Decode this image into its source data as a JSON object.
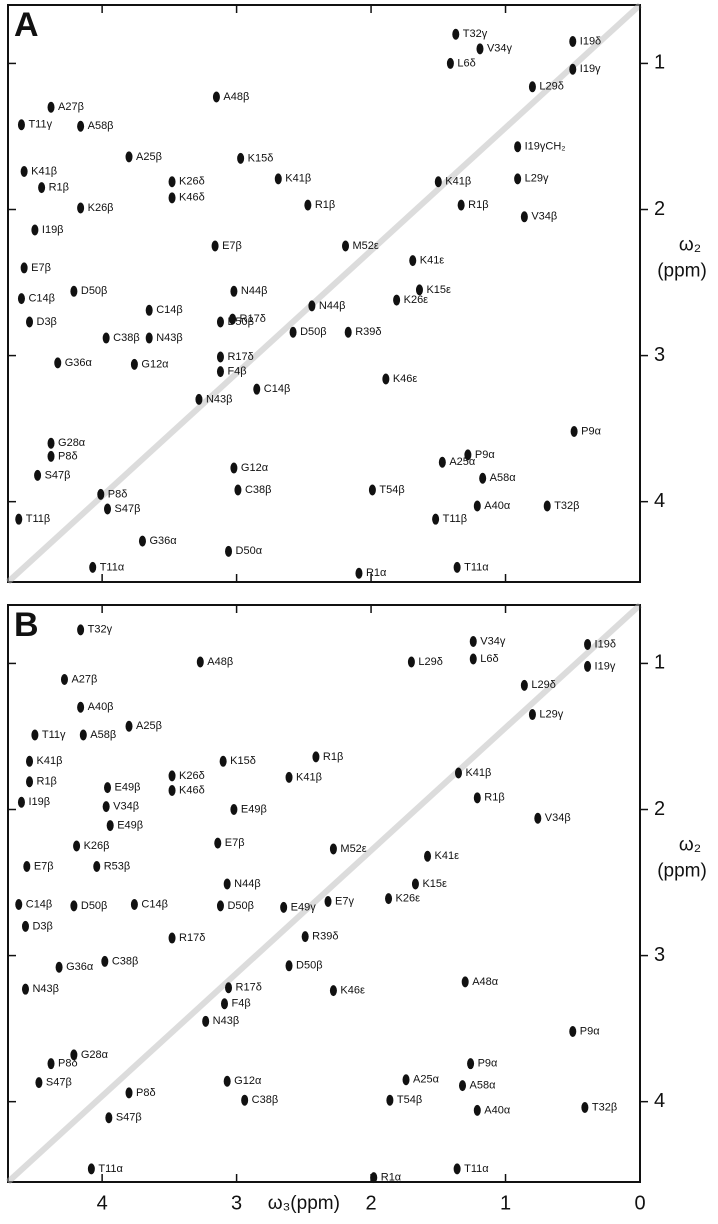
{
  "chart_data": [
    {
      "type": "scatter",
      "title": "A",
      "ylabel": "ω₂",
      "yunit": "(ppm)",
      "color": "#111111",
      "xlim": [
        4.7,
        0
      ],
      "ylim": [
        0.6,
        4.55
      ],
      "xticks": [
        4,
        3,
        2,
        1,
        0
      ],
      "yticks": [
        1,
        2,
        3,
        4
      ],
      "labels": [
        "T32γ",
        "I19δ",
        "V34γ",
        "L6δ",
        "I19γ",
        "L29δ",
        "A48β",
        "A27β",
        "T11γ",
        "A58β",
        "I19γCH₂",
        "A25β",
        "K15δ",
        "K26δ",
        "K41β",
        "K41β",
        "K46δ",
        "L29γ",
        "R1β",
        "K41β",
        "R1β",
        "R1β",
        "K26β",
        "V34β",
        "I19β",
        "E7β",
        "M52ε",
        "K41ε",
        "E7β",
        "N44β",
        "C14β",
        "D50β",
        "K26ε",
        "K15ε",
        "C14β",
        "D50β",
        "D3β",
        "N44β",
        "R17δ",
        "C38β",
        "N43β",
        "D50β",
        "R39δ",
        "G36α",
        "G12α",
        "R17δ",
        "K46ε",
        "F4β",
        "C14β",
        "N43β",
        "P9α",
        "G28α",
        "A25α",
        "P9α",
        "P8δ",
        "S47β",
        "G12α",
        "A58α",
        "P8δ",
        "C38β",
        "T54β",
        "S47β",
        "A40α",
        "T32β",
        "T11β",
        "T11β",
        "G36α",
        "D50α",
        "R1α",
        "T11α",
        "T11α"
      ],
      "x": [
        1.37,
        0.5,
        1.19,
        1.41,
        0.5,
        0.8,
        3.15,
        4.38,
        4.6,
        4.16,
        0.91,
        3.8,
        2.97,
        3.48,
        2.69,
        4.58,
        3.48,
        0.91,
        4.45,
        1.5,
        2.47,
        1.33,
        4.16,
        0.86,
        4.5,
        3.16,
        2.19,
        1.69,
        4.58,
        3.02,
        4.6,
        4.21,
        1.81,
        1.64,
        3.65,
        3.12,
        4.54,
        2.44,
        3.03,
        3.97,
        3.65,
        2.58,
        2.17,
        4.33,
        3.76,
        3.12,
        1.89,
        3.12,
        2.85,
        3.28,
        0.49,
        4.38,
        1.47,
        1.28,
        4.38,
        4.48,
        3.02,
        1.17,
        4.01,
        2.99,
        1.99,
        3.96,
        1.21,
        0.69,
        4.62,
        1.52,
        3.7,
        3.06,
        2.09,
        4.07,
        1.36
      ],
      "values": [
        0.8,
        0.85,
        0.9,
        1.0,
        1.04,
        1.16,
        1.23,
        1.3,
        1.42,
        1.43,
        1.57,
        1.64,
        1.65,
        1.81,
        1.79,
        1.74,
        1.92,
        1.79,
        1.85,
        1.81,
        1.97,
        1.97,
        1.99,
        2.05,
        2.14,
        2.25,
        2.25,
        2.35,
        2.4,
        2.56,
        2.61,
        2.56,
        2.62,
        2.55,
        2.69,
        2.77,
        2.77,
        2.66,
        2.75,
        2.88,
        2.88,
        2.84,
        2.84,
        3.05,
        3.06,
        3.01,
        3.16,
        3.11,
        3.23,
        3.3,
        3.52,
        3.6,
        3.73,
        3.68,
        3.69,
        3.82,
        3.77,
        3.84,
        3.95,
        3.92,
        3.92,
        4.05,
        4.03,
        4.03,
        4.12,
        4.12,
        4.27,
        4.34,
        4.49,
        4.45,
        4.45
      ]
    },
    {
      "type": "scatter",
      "title": "B",
      "ylabel": "ω₂",
      "yunit": "(ppm)",
      "xlabel": "ω₃(ppm)",
      "color": "#111111",
      "xlim": [
        4.7,
        0
      ],
      "ylim": [
        0.6,
        4.55
      ],
      "xticks": [
        4,
        3,
        2,
        1,
        0
      ],
      "yticks": [
        1,
        2,
        3,
        4
      ],
      "labels": [
        "T32γ",
        "V34γ",
        "I19δ",
        "L29δ",
        "L6δ",
        "I19γ",
        "L29δ",
        "A48β",
        "A27β",
        "A40β",
        "T11γ",
        "A58β",
        "A25β",
        "L29γ",
        "K15δ",
        "K41β",
        "R1β",
        "K41β",
        "K41β",
        "R1β",
        "K26δ",
        "K46δ",
        "R1β",
        "E49β",
        "E49β",
        "V34β",
        "V34β",
        "I19β",
        "E49β",
        "K26β",
        "E7β",
        "M52ε",
        "K41ε",
        "E7β",
        "R53β",
        "E49γ",
        "E7γ",
        "N44β",
        "K26ε",
        "K15ε",
        "C14β",
        "D50β",
        "C14β",
        "D50β",
        "D3β",
        "R39δ",
        "R17δ",
        "D50β",
        "C38β",
        "G36α",
        "A48α",
        "K46ε",
        "R17δ",
        "N43β",
        "F4β",
        "N43β",
        "P9α",
        "G28α",
        "P9α",
        "P8δ",
        "A25α",
        "S47β",
        "G12α",
        "A58α",
        "P8δ",
        "C38β",
        "T54β",
        "A40α",
        "T32β",
        "S47β",
        "T11α",
        "R1α",
        "T11α"
      ],
      "x": [
        4.16,
        1.24,
        0.39,
        1.7,
        1.24,
        0.39,
        0.86,
        3.27,
        4.28,
        4.16,
        4.5,
        4.14,
        3.8,
        0.8,
        3.1,
        4.54,
        2.41,
        2.61,
        1.35,
        1.21,
        3.48,
        3.48,
        4.54,
        3.96,
        3.02,
        3.97,
        0.76,
        4.6,
        3.94,
        4.19,
        3.14,
        2.28,
        1.58,
        4.56,
        4.04,
        2.65,
        2.32,
        3.07,
        1.87,
        1.67,
        4.62,
        4.21,
        3.76,
        3.12,
        4.57,
        2.49,
        3.48,
        2.61,
        3.98,
        4.32,
        1.3,
        2.28,
        3.06,
        4.57,
        3.09,
        3.23,
        0.5,
        4.21,
        1.26,
        4.38,
        1.74,
        4.47,
        3.07,
        1.32,
        3.8,
        2.94,
        1.86,
        1.21,
        0.41,
        3.95,
        4.08,
        1.98,
        1.36
      ],
      "values": [
        0.77,
        0.85,
        0.87,
        0.99,
        0.97,
        1.02,
        1.15,
        0.99,
        1.11,
        1.3,
        1.49,
        1.49,
        1.43,
        1.35,
        1.67,
        1.67,
        1.64,
        1.78,
        1.75,
        1.92,
        1.77,
        1.87,
        1.81,
        1.85,
        2.0,
        1.98,
        2.06,
        1.95,
        2.11,
        2.25,
        2.23,
        2.27,
        2.32,
        2.39,
        2.39,
        2.67,
        2.63,
        2.51,
        2.61,
        2.51,
        2.65,
        2.66,
        2.65,
        2.66,
        2.8,
        2.87,
        2.88,
        3.07,
        3.04,
        3.08,
        3.18,
        3.24,
        3.22,
        3.23,
        3.33,
        3.45,
        3.52,
        3.68,
        3.74,
        3.74,
        3.85,
        3.87,
        3.86,
        3.89,
        3.94,
        3.99,
        3.99,
        4.06,
        4.04,
        4.11,
        4.46,
        4.52,
        4.46
      ]
    }
  ]
}
